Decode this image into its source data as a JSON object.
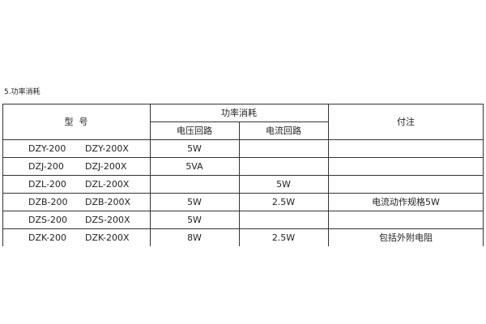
{
  "section_title": "5.功率消耗",
  "header": {
    "model": "型  号",
    "power": "功率消耗",
    "voltage_circuit": "电压回路",
    "current_circuit": "电流回路",
    "note": "付注"
  },
  "rows": [
    {
      "model_a": "DZY-200",
      "model_b": "DZY-200X",
      "voltage": "5W",
      "current": "",
      "note": ""
    },
    {
      "model_a": "DZJ-200",
      "model_b": "DZJ-200X",
      "voltage": "5VA",
      "current": "",
      "note": ""
    },
    {
      "model_a": "DZL-200",
      "model_b": "DZL-200X",
      "voltage": "",
      "current": "5W",
      "note": ""
    },
    {
      "model_a": "DZB-200",
      "model_b": "DZB-200X",
      "voltage": "5W",
      "current": "2.5W",
      "note": "电流动作规格5W"
    },
    {
      "model_a": "DZS-200",
      "model_b": "DZS-200X",
      "voltage": "5W",
      "current": "",
      "note": ""
    },
    {
      "model_a": "DZK-200",
      "model_b": "DZK-200X",
      "voltage": "8W",
      "current": "2.5W",
      "note": "包括外附电阻"
    }
  ]
}
